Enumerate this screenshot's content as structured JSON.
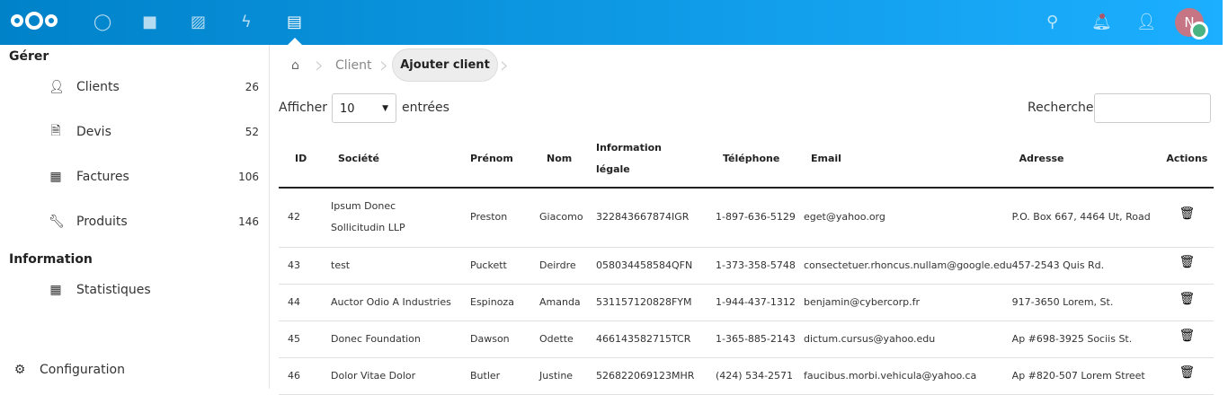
{
  "header": {
    "apps": [
      "dashboard",
      "files",
      "photos",
      "activity",
      "invoicing"
    ],
    "user_initial": "N",
    "accent": "#0082c9"
  },
  "sidebar": {
    "section1": "Gérer",
    "items": [
      {
        "label": "Clients",
        "count": "26"
      },
      {
        "label": "Devis",
        "count": "52"
      },
      {
        "label": "Factures",
        "count": "106"
      },
      {
        "label": "Produits",
        "count": "146"
      }
    ],
    "section2": "Information",
    "info_items": [
      {
        "label": "Statistiques"
      }
    ],
    "settings": "Configuration"
  },
  "breadcrumb": {
    "client": "Client",
    "current": "Ajouter client"
  },
  "controls": {
    "show": "Afficher",
    "page_size": "10",
    "entries": "entrées",
    "search": "Recherche",
    "search_value": ""
  },
  "table": {
    "headers": [
      "ID",
      "Société",
      "Prénom",
      "Nom",
      "Information légale",
      "Téléphone",
      "Email",
      "Adresse",
      "Actions"
    ],
    "rows": [
      [
        "42",
        "Ipsum Donec Sollicitudin LLP",
        "Preston",
        "Giacomo",
        "322843667874IGR",
        "1-897-636-5129",
        "eget@yahoo.org",
        "P.O. Box 667, 4464 Ut, Road"
      ],
      [
        "43",
        "test",
        "Puckett",
        "Deirdre",
        "058034458584QFN",
        "1-373-358-5748",
        "consectetuer.rhoncus.nullam@google.edu",
        "457-2543 Quis Rd."
      ],
      [
        "44",
        "Auctor Odio A Industries",
        "Espinoza",
        "Amanda",
        "531157120828FYM",
        "1-944-437-1312",
        "benjamin@cybercorp.fr",
        "917-3650 Lorem, St."
      ],
      [
        "45",
        "Donec Foundation",
        "Dawson",
        "Odette",
        "466143582715TCR",
        "1-365-885-2143",
        "dictum.cursus@yahoo.edu",
        "Ap #698-3925 Sociis St."
      ],
      [
        "46",
        "Dolor Vitae Dolor",
        "Butler",
        "Justine",
        "526822069123MHR",
        "(424) 534-2571",
        "faucibus.morbi.vehicula@yahoo.ca",
        "Ap #820-507 Lorem Street"
      ]
    ]
  }
}
